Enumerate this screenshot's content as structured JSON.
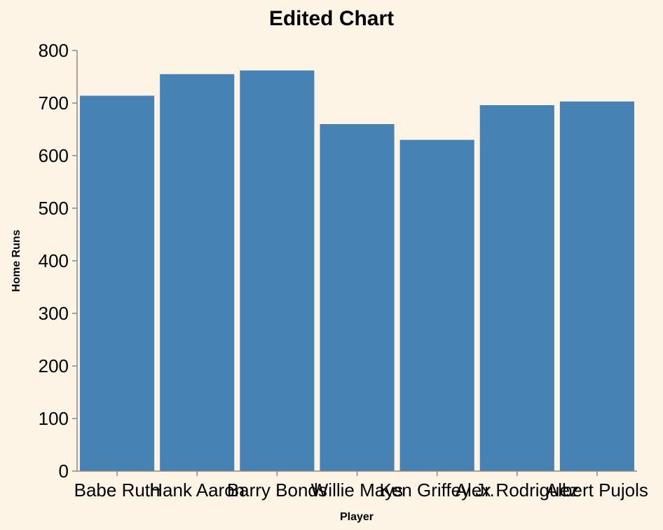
{
  "chart_data": {
    "type": "bar",
    "title": "Edited Chart",
    "xlabel": "Player",
    "ylabel": "Home Runs",
    "categories": [
      "Babe Ruth",
      "Hank Aaron",
      "Barry Bonds",
      "Willie Mays",
      "Ken Griffey Jr.",
      "Alex Rodriguez",
      "Albert Pujols"
    ],
    "values": [
      714,
      755,
      762,
      660,
      630,
      696,
      703
    ],
    "ylim": [
      0,
      800
    ],
    "yticks": [
      0,
      100,
      200,
      300,
      400,
      500,
      600,
      700,
      800
    ],
    "grid": false,
    "legend": "none",
    "colors": {
      "bar": "#4682b4",
      "background": "#fef4e5",
      "axis": "#888888"
    }
  }
}
